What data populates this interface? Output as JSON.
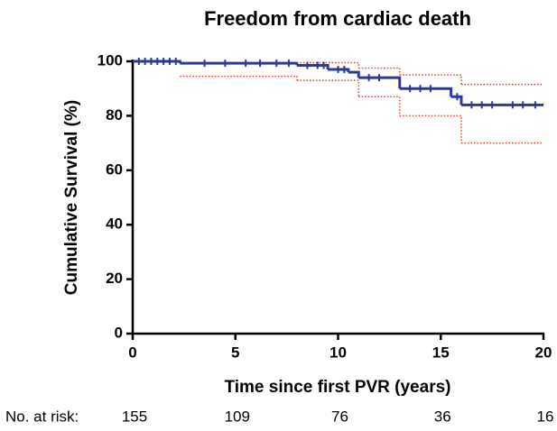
{
  "chart_data": {
    "type": "step",
    "title": "Freedom from cardiac death",
    "x_label": "Time since first PVR (years)",
    "y_label": "Cumulative Survival  (%)",
    "xlim": [
      0,
      20
    ],
    "xticks": [
      0,
      5,
      10,
      15,
      20
    ],
    "ylim": [
      0,
      100
    ],
    "yticks": [
      0,
      20,
      40,
      60,
      80,
      100
    ],
    "series": [
      {
        "color": "#2b3a9a",
        "style": "solid",
        "x": [
          0,
          2.3,
          8,
          9.5,
          10.5,
          11,
          13,
          15.5,
          16,
          20
        ],
        "values": [
          100,
          99.3,
          98.5,
          97,
          96,
          94,
          90,
          87,
          84,
          84
        ]
      },
      {
        "color": "#ee3b2b",
        "style": "dotted",
        "x": [
          8,
          11,
          13,
          16,
          20
        ],
        "values": [
          99.5,
          97.5,
          95,
          91.5,
          91.5
        ]
      },
      {
        "color": "#ee3b2b",
        "style": "dotted",
        "x": [
          2.3,
          8,
          11,
          13,
          16,
          20
        ],
        "values": [
          94.5,
          93,
          87,
          80,
          70,
          70
        ]
      },
      {
        "color": "#2b3a9a",
        "style": "censor",
        "x": [
          0.3,
          0.6,
          0.9,
          1.2,
          1.5,
          1.8,
          2.1,
          3.5,
          4.5,
          5.5,
          6.2,
          7,
          7.6,
          8.5,
          9,
          9.3,
          10,
          10.3,
          11.5,
          12,
          13.5,
          14,
          14.5,
          15.8,
          16.5,
          17,
          17.5,
          18.5,
          19,
          19.6
        ],
        "values": [
          100,
          100,
          100,
          100,
          100,
          100,
          100,
          99.3,
          99.3,
          99.3,
          99.3,
          99.3,
          99.3,
          98.5,
          98.5,
          98.5,
          97,
          97,
          94,
          94,
          90,
          90,
          90,
          87,
          84,
          84,
          84,
          84,
          84,
          84
        ]
      }
    ],
    "at_risk": {
      "label": "No. at risk:",
      "x": [
        0,
        5,
        10,
        15,
        20
      ],
      "values": [
        155,
        109,
        76,
        36,
        16
      ]
    }
  }
}
